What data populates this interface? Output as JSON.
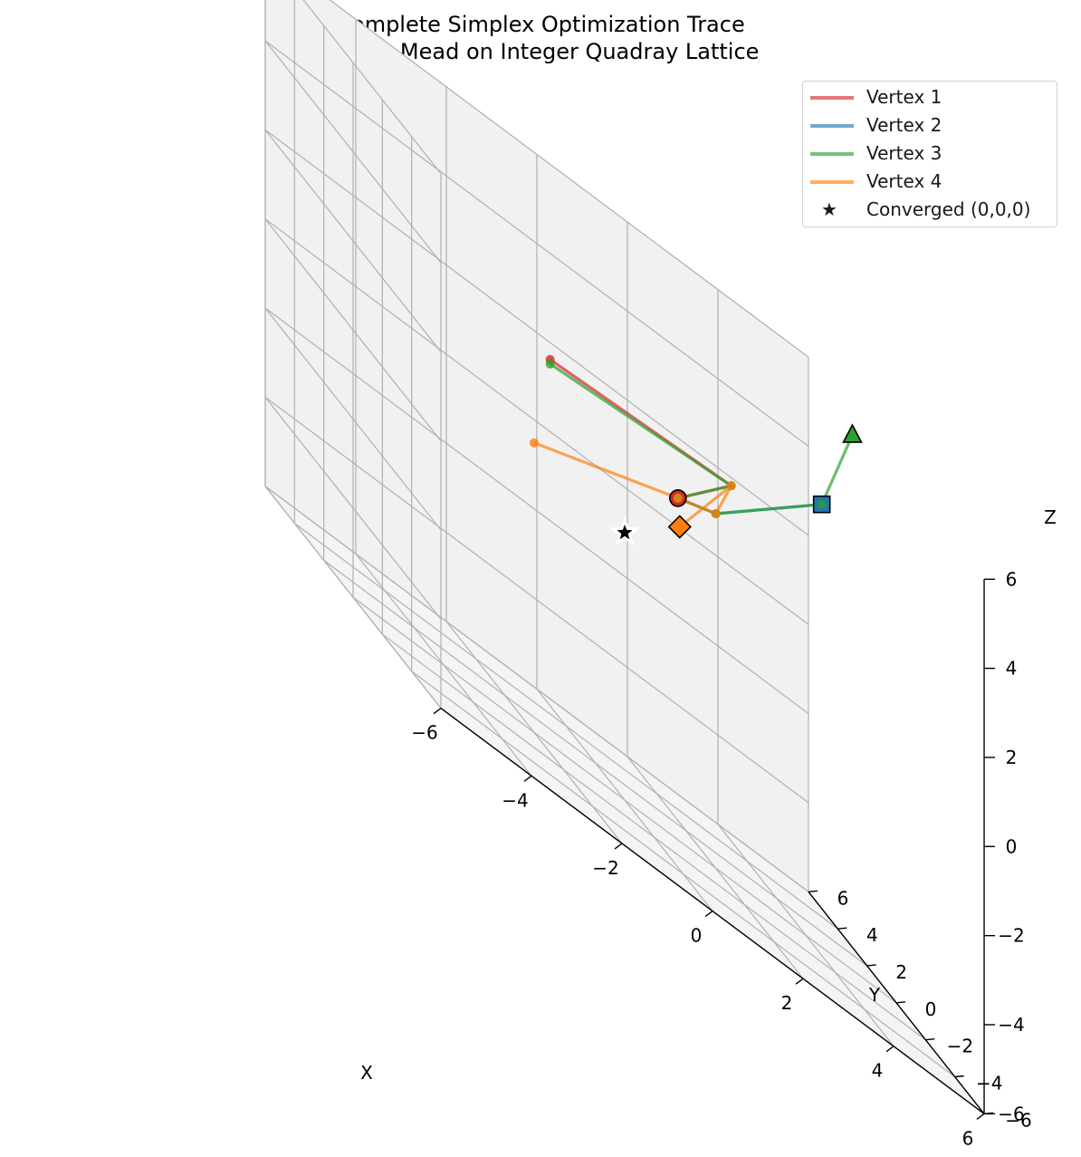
{
  "chart_data": {
    "type": "line3d",
    "title": "Complete Simplex Optimization Trace",
    "subtitle": "Nelder-Mead on Integer Quadray Lattice",
    "xlabel": "X",
    "ylabel": "Y",
    "zlabel": "Z",
    "xlim": [
      -6,
      6
    ],
    "ylim": [
      -6,
      6
    ],
    "zlim": [
      -6,
      6
    ],
    "ticks": [
      -6,
      -4,
      -2,
      0,
      2,
      4,
      6
    ],
    "tick_labels": [
      "−6",
      "−4",
      "−2",
      "0",
      "2",
      "4",
      "6"
    ],
    "grid": true,
    "legend_position": "top-right",
    "series": [
      {
        "name": "Vertex 1",
        "color": "#d62728",
        "marker": "circle",
        "points": [
          [
            -1.0,
            2.0,
            2.3
          ],
          [
            3.0,
            2.0,
            2.5
          ],
          [
            1.5,
            1.0,
            1.5
          ]
        ]
      },
      {
        "name": "Vertex 2",
        "color": "#1f77b4",
        "marker": "square",
        "points": [
          [
            1.5,
            1.0,
            1.5
          ],
          [
            2.5,
            1.5,
            1.7
          ],
          [
            5.0,
            2.0,
            3.6
          ]
        ]
      },
      {
        "name": "Vertex 3",
        "color": "#2ca02c",
        "marker": "triangle",
        "points": [
          [
            -1.0,
            2.0,
            2.2
          ],
          [
            3.0,
            2.0,
            2.5
          ],
          [
            1.5,
            1.0,
            1.5
          ],
          [
            2.5,
            1.5,
            1.7
          ],
          [
            5.0,
            2.0,
            3.6
          ],
          [
            6.0,
            3.0,
            5.5
          ]
        ]
      },
      {
        "name": "Vertex 4",
        "color": "#ff7f0e",
        "marker": "diamond",
        "points": [
          [
            -2.0,
            0.0,
            0.5
          ],
          [
            1.5,
            1.0,
            1.5
          ],
          [
            2.5,
            1.5,
            1.7
          ],
          [
            3.0,
            2.0,
            2.5
          ],
          [
            1.7,
            1.5,
            0.8
          ]
        ]
      }
    ],
    "converged": {
      "name": "Converged (0,0,0)",
      "point": [
        0,
        0,
        0
      ],
      "marker": "star",
      "color": "#000000"
    }
  }
}
